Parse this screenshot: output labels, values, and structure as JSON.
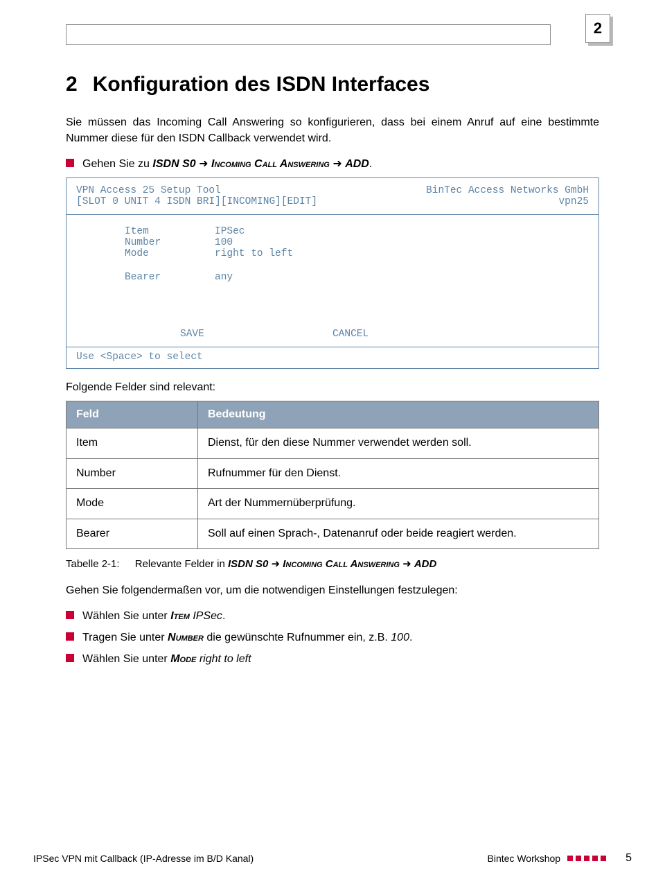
{
  "colors": {
    "accent_red": "#c90035",
    "terminal_blue": "#5d84a6",
    "table_header_bg": "#8ea3b8",
    "border_gray": "#8e8b87"
  },
  "page_badge": "2",
  "heading": {
    "number": "2",
    "title": "Konfiguration des ISDN Interfaces"
  },
  "intro": "Sie müssen das Incoming Call Answering so konfigurieren, dass bei einem Anruf auf eine bestimmte Nummer diese für den ISDN Callback verwendet wird.",
  "nav_line": {
    "prefix": "Gehen Sie zu ",
    "b1": "ISDN S0",
    "b2": "Incoming Call Answering",
    "b3": "ADD",
    "suffix": "."
  },
  "terminal": {
    "head_left_l1": "VPN Access 25 Setup Tool",
    "head_left_l2": "[SLOT 0 UNIT 4 ISDN BRI][INCOMING][EDIT]",
    "head_right_l1": "BinTec Access Networks GmbH",
    "head_right_l2": "vpn25",
    "rows": [
      {
        "k": "Item",
        "v": "IPSec"
      },
      {
        "k": "Number",
        "v": "100"
      },
      {
        "k": "Mode",
        "v": "right to left"
      }
    ],
    "row_after_gap": {
      "k": "Bearer",
      "v": "any"
    },
    "action_save": "SAVE",
    "action_cancel": "CANCEL",
    "footer": "Use <Space> to select"
  },
  "subhead": "Folgende Felder sind relevant:",
  "table": {
    "columns": [
      "Feld",
      "Bedeutung"
    ],
    "rows": [
      [
        "Item",
        "Dienst, für den diese Nummer verwendet werden soll."
      ],
      [
        "Number",
        "Rufnummer für den Dienst."
      ],
      [
        "Mode",
        "Art der Nummernüberprüfung."
      ],
      [
        "Bearer",
        "Soll auf einen Sprach-, Datenanruf oder beide reagiert werden."
      ]
    ]
  },
  "caption": {
    "label": "Tabelle 2-1:",
    "text_pre": "Relevante Felder in ",
    "b1": "ISDN S0",
    "b2": "Incoming Call Answering",
    "b3": "ADD"
  },
  "para2": "Gehen Sie folgendermaßen vor, um die notwendigen Einstellungen festzulegen:",
  "bullets": [
    {
      "pre": "Wählen Sie unter ",
      "key": "Item",
      "mid": " ",
      "val": "IPSec",
      "post": "."
    },
    {
      "pre": "Tragen Sie unter ",
      "key": "Number",
      "mid": " die gewünschte Rufnummer ein, z.B. ",
      "val": "100",
      "post": "."
    },
    {
      "pre": "Wählen Sie unter ",
      "key": "Mode",
      "mid": " ",
      "val": "right to left",
      "post": ""
    }
  ],
  "footer": {
    "left": "IPSec VPN mit Callback (IP-Adresse im B/D Kanal)",
    "right": "Bintec Workshop",
    "page": "5"
  }
}
